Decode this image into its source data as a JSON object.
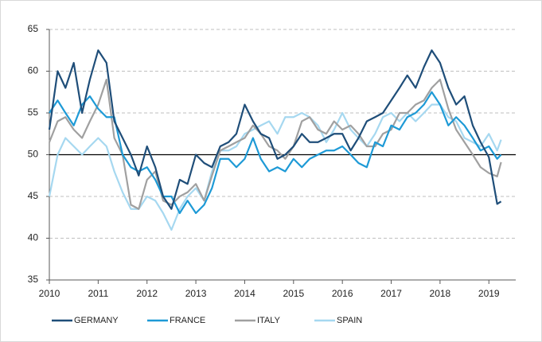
{
  "chart_data": {
    "type": "line",
    "x": [
      2010,
      2010.17,
      2010.33,
      2010.5,
      2010.67,
      2010.83,
      2011,
      2011.17,
      2011.33,
      2011.5,
      2011.67,
      2011.83,
      2012,
      2012.17,
      2012.33,
      2012.5,
      2012.67,
      2012.83,
      2013,
      2013.17,
      2013.33,
      2013.5,
      2013.67,
      2013.83,
      2014,
      2014.17,
      2014.33,
      2014.5,
      2014.67,
      2014.83,
      2015,
      2015.17,
      2015.33,
      2015.5,
      2015.67,
      2015.83,
      2016,
      2016.17,
      2016.33,
      2016.5,
      2016.67,
      2016.83,
      2017,
      2017.17,
      2017.33,
      2017.5,
      2017.67,
      2017.83,
      2018,
      2018.17,
      2018.33,
      2018.5,
      2018.67,
      2018.83,
      2019,
      2019.17,
      2019.25
    ],
    "series": [
      {
        "name": "GERMANY",
        "color": "#1f4e79",
        "values": [
          53,
          60,
          58,
          61,
          55,
          59,
          62.5,
          61,
          54,
          52,
          50,
          47.5,
          51,
          48.5,
          45,
          43.5,
          47,
          46.5,
          50,
          49,
          48.5,
          51,
          51.5,
          52.5,
          56,
          54,
          52.5,
          52,
          49.5,
          50,
          51,
          52.5,
          51.5,
          51.5,
          52,
          52.5,
          52.5,
          50.5,
          52,
          54,
          54.5,
          55,
          56.5,
          58,
          59.5,
          58,
          60.5,
          62.5,
          61,
          58,
          56,
          57,
          53.5,
          51.5,
          49.7,
          44.1,
          44.4
        ]
      },
      {
        "name": "FRANCE",
        "color": "#1e9ad6",
        "values": [
          55,
          56.5,
          55,
          53.5,
          56,
          57,
          55.5,
          54.5,
          54.5,
          50,
          48.5,
          48,
          48.5,
          47,
          45,
          45,
          43,
          44.5,
          43,
          44,
          46,
          49.5,
          49.5,
          48.5,
          49.5,
          52,
          49.5,
          48,
          48.5,
          48,
          49.5,
          48.5,
          49.5,
          50,
          50.5,
          50.5,
          51,
          50,
          49,
          48.5,
          51.5,
          51,
          53.5,
          53,
          54.5,
          55,
          56,
          57.5,
          56,
          53.5,
          54.5,
          53.5,
          52,
          50.5,
          51,
          49.5,
          50
        ]
      },
      {
        "name": "ITALY",
        "color": "#a0a0a0",
        "values": [
          51.5,
          54,
          54.5,
          53,
          52,
          54,
          56,
          59,
          52,
          50,
          44,
          43.5,
          47,
          48,
          44.5,
          44,
          45,
          45.5,
          46.5,
          44.5,
          47.5,
          50.5,
          51,
          51.5,
          52,
          53.5,
          52.5,
          51,
          50.5,
          49.5,
          51,
          54,
          54.5,
          53,
          52.5,
          54,
          53,
          53.5,
          52.5,
          51,
          51,
          52.5,
          53,
          55,
          55,
          56,
          56.5,
          58,
          59,
          55.5,
          53,
          51.5,
          50,
          48.5,
          47.8,
          47.4,
          49.1
        ]
      },
      {
        "name": "SPAIN",
        "color": "#a6d8f0",
        "values": [
          45,
          50,
          52,
          51,
          50,
          51,
          52,
          51,
          48,
          45.5,
          43.5,
          43.5,
          45,
          44.5,
          43,
          41,
          43.5,
          45,
          46,
          44.5,
          48,
          50.5,
          50.5,
          51,
          52.5,
          53,
          53.5,
          54,
          52.5,
          54.5,
          54.5,
          55,
          54.5,
          53.5,
          51.5,
          53,
          55,
          53,
          52,
          51,
          52.5,
          54.5,
          55,
          54,
          55,
          54,
          55,
          56,
          56,
          54.5,
          54,
          52,
          51.5,
          51,
          52.5,
          50.5,
          51.8
        ]
      }
    ],
    "xlim": [
      2010,
      2019.55
    ],
    "xticks": [
      2010,
      2011,
      2012,
      2013,
      2014,
      2015,
      2016,
      2017,
      2018,
      2019
    ],
    "ylim": [
      35,
      65
    ],
    "yticks": [
      35,
      40,
      45,
      50,
      55,
      60,
      65
    ],
    "reference_line": 50,
    "grid": true,
    "legend": "bottom"
  }
}
